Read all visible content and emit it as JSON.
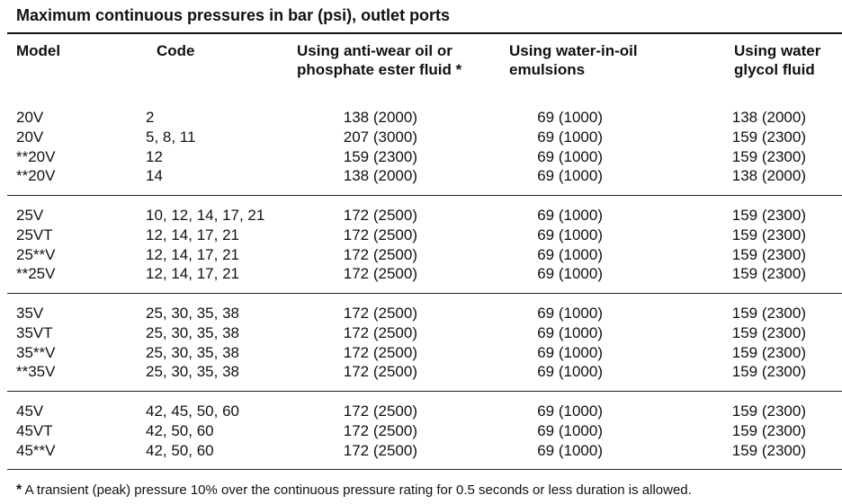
{
  "title": "Maximum continuous pressures in bar (psi), outlet ports",
  "headers": {
    "model": "Model",
    "code": "Code",
    "anti_wear": [
      "Using anti-wear oil or",
      "phosphate ester fluid *"
    ],
    "water_in_oil": [
      "Using water-in-oil",
      "emulsions"
    ],
    "water_glycol": [
      "Using water",
      "glycol fluid"
    ]
  },
  "groups": [
    {
      "rows": [
        {
          "model": "20V",
          "code": "2",
          "anti_wear": "138 (2000)",
          "water_in_oil": "69 (1000)",
          "water_glycol": "138 (2000)"
        },
        {
          "model": "20V",
          "code": "5, 8, 11",
          "anti_wear": "207 (3000)",
          "water_in_oil": "69 (1000)",
          "water_glycol": "159 (2300)"
        },
        {
          "model": "**20V",
          "code": "12",
          "anti_wear": "159 (2300)",
          "water_in_oil": "69 (1000)",
          "water_glycol": "159 (2300)"
        },
        {
          "model": "**20V",
          "code": "14",
          "anti_wear": "138 (2000)",
          "water_in_oil": "69 (1000)",
          "water_glycol": "138 (2000)"
        }
      ]
    },
    {
      "rows": [
        {
          "model": "25V",
          "code": "10, 12, 14, 17, 21",
          "anti_wear": "172 (2500)",
          "water_in_oil": "69 (1000)",
          "water_glycol": "159 (2300)"
        },
        {
          "model": "25VT",
          "code": "12, 14, 17, 21",
          "anti_wear": "172 (2500)",
          "water_in_oil": "69 (1000)",
          "water_glycol": "159 (2300)"
        },
        {
          "model": "25**V",
          "code": "12, 14, 17, 21",
          "anti_wear": "172 (2500)",
          "water_in_oil": "69 (1000)",
          "water_glycol": "159 (2300)"
        },
        {
          "model": "**25V",
          "code": "12, 14, 17, 21",
          "anti_wear": "172 (2500)",
          "water_in_oil": "69 (1000)",
          "water_glycol": "159 (2300)"
        }
      ]
    },
    {
      "rows": [
        {
          "model": "35V",
          "code": "25, 30, 35, 38",
          "anti_wear": "172 (2500)",
          "water_in_oil": "69 (1000)",
          "water_glycol": "159 (2300)"
        },
        {
          "model": "35VT",
          "code": "25, 30, 35, 38",
          "anti_wear": "172 (2500)",
          "water_in_oil": "69 (1000)",
          "water_glycol": "159 (2300)"
        },
        {
          "model": "35**V",
          "code": "25, 30, 35, 38",
          "anti_wear": "172 (2500)",
          "water_in_oil": "69 (1000)",
          "water_glycol": "159 (2300)"
        },
        {
          "model": "**35V",
          "code": "25, 30, 35, 38",
          "anti_wear": "172 (2500)",
          "water_in_oil": "69 (1000)",
          "water_glycol": "159 (2300)"
        }
      ]
    },
    {
      "rows": [
        {
          "model": "45V",
          "code": "42, 45, 50, 60",
          "anti_wear": "172 (2500)",
          "water_in_oil": "69 (1000)",
          "water_glycol": "159 (2300)"
        },
        {
          "model": "45VT",
          "code": "42, 50, 60",
          "anti_wear": "172 (2500)",
          "water_in_oil": "69 (1000)",
          "water_glycol": "159 (2300)"
        },
        {
          "model": "45**V",
          "code": "42, 50, 60",
          "anti_wear": "172 (2500)",
          "water_in_oil": "69 (1000)",
          "water_glycol": "159 (2300)"
        }
      ]
    }
  ],
  "footnote": {
    "marker": "*",
    "text": " A transient (peak) pressure 10% over the continuous pressure rating for  0.5 seconds or less duration is allowed."
  }
}
